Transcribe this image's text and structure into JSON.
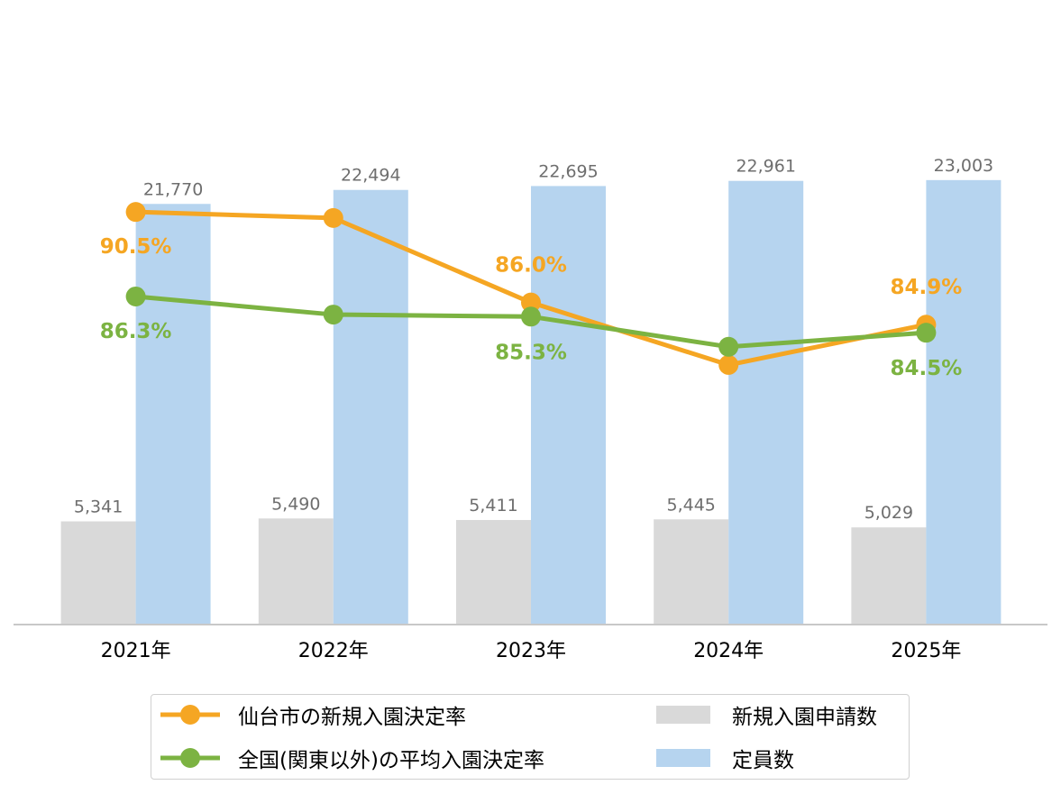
{
  "chart_data": {
    "type": "bar",
    "categories": [
      "2021年",
      "2022年",
      "2023年",
      "2024年",
      "2025年"
    ],
    "bar_series": [
      {
        "name": "新規入園申請数",
        "values": [
          5341,
          5490,
          5411,
          5445,
          5029
        ],
        "labels": [
          "5,341",
          "5,490",
          "5,411",
          "5,445",
          "5,029"
        ],
        "color": "#d9d9d9"
      },
      {
        "name": "定員数",
        "values": [
          21770,
          22494,
          22695,
          22961,
          23003
        ],
        "labels": [
          "21,770",
          "22,494",
          "22,695",
          "22,961",
          "23,003"
        ],
        "color": "#b6d4ef"
      }
    ],
    "line_series": [
      {
        "name": "仙台市の新規入園決定率",
        "values": [
          90.5,
          90.2,
          86.0,
          82.9,
          84.9
        ],
        "labels": [
          "90.5%",
          "",
          "86.0%",
          "",
          "84.9%"
        ],
        "color": "#f5a623"
      },
      {
        "name": "全国(関東以外)の平均入園決定率",
        "values": [
          86.3,
          85.4,
          85.3,
          83.8,
          84.5
        ],
        "labels": [
          "86.3%",
          "",
          "85.3%",
          "",
          "84.5%"
        ],
        "color": "#7cb342"
      }
    ],
    "bar_ylim": [
      0,
      25000
    ],
    "line_ylim": [
      70,
      94
    ],
    "grid": false,
    "legend_position": "bottom"
  }
}
